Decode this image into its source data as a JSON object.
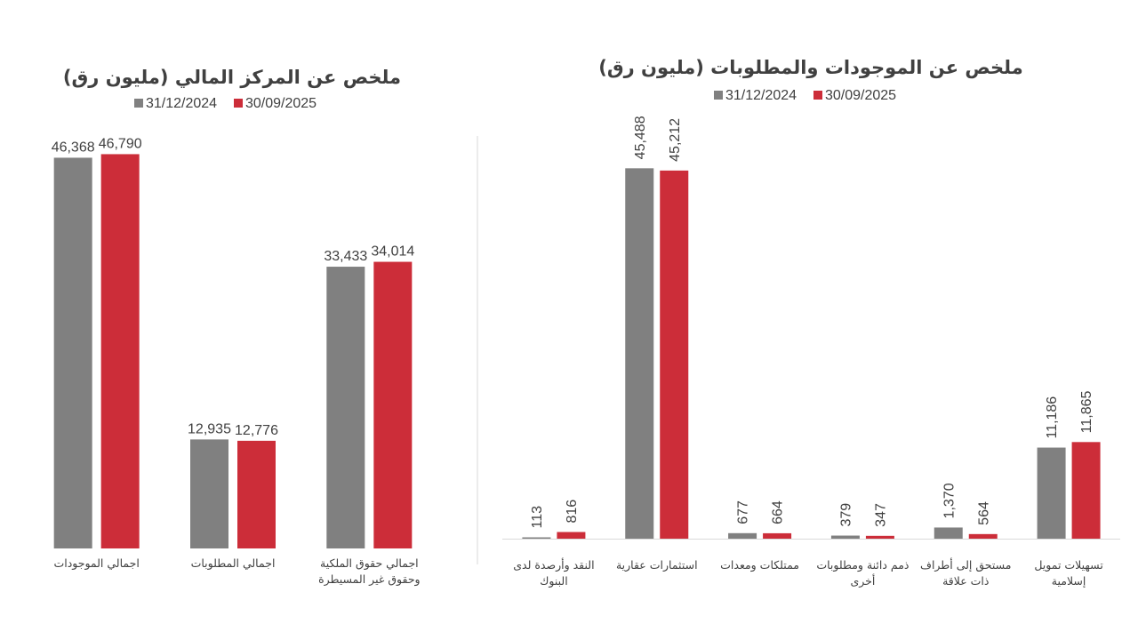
{
  "colors": {
    "series_2024": "#808080",
    "series_2025": "#CC2D39",
    "axis": "#D9D9D9",
    "text": "#404040"
  },
  "chart_data": [
    {
      "type": "bar",
      "title": "ملخص عن المركز المالي (مليون رق)",
      "legend_position": "top",
      "grid": false,
      "ylim": [
        0,
        50000
      ],
      "categories": [
        [
          "اجمالي الموجودات"
        ],
        [
          "اجمالي المطلوبات"
        ],
        [
          "اجمالي حقوق الملكية",
          "وحقوق غير المسيطرة"
        ]
      ],
      "series": [
        {
          "name": "31/12/2024",
          "values": [
            46368,
            12935,
            33433
          ],
          "labels": [
            "46,368",
            "12,935",
            "33,433"
          ]
        },
        {
          "name": "30/09/2025",
          "values": [
            46790,
            12776,
            34014
          ],
          "labels": [
            "46,790",
            "12,776",
            "34,014"
          ]
        }
      ]
    },
    {
      "type": "bar",
      "title": "ملخص عن الموجودات والمطلوبات (مليون رق)",
      "legend_position": "top",
      "grid": false,
      "ylim": [
        0,
        50000
      ],
      "categories": [
        [
          "النقد وأرصدة لدى",
          "البنوك"
        ],
        [
          "استثمارات عقارية"
        ],
        [
          "ممتلكات ومعدات"
        ],
        [
          "ذمم دائنة ومطلوبات",
          "أخرى"
        ],
        [
          "مستحق إلى أطراف",
          "ذات علاقة"
        ],
        [
          "تسهيلات تمويل",
          "إسلامية"
        ]
      ],
      "series": [
        {
          "name": "31/12/2024",
          "values": [
            113,
            45488,
            677,
            379,
            1370,
            11186
          ],
          "labels": [
            "113",
            "45,488",
            "677",
            "379",
            "1,370",
            "11,186"
          ]
        },
        {
          "name": "30/09/2025",
          "values": [
            816,
            45212,
            664,
            347,
            564,
            11865
          ],
          "labels": [
            "816",
            "45,212",
            "664",
            "347",
            "564",
            "11,865"
          ]
        }
      ]
    }
  ]
}
